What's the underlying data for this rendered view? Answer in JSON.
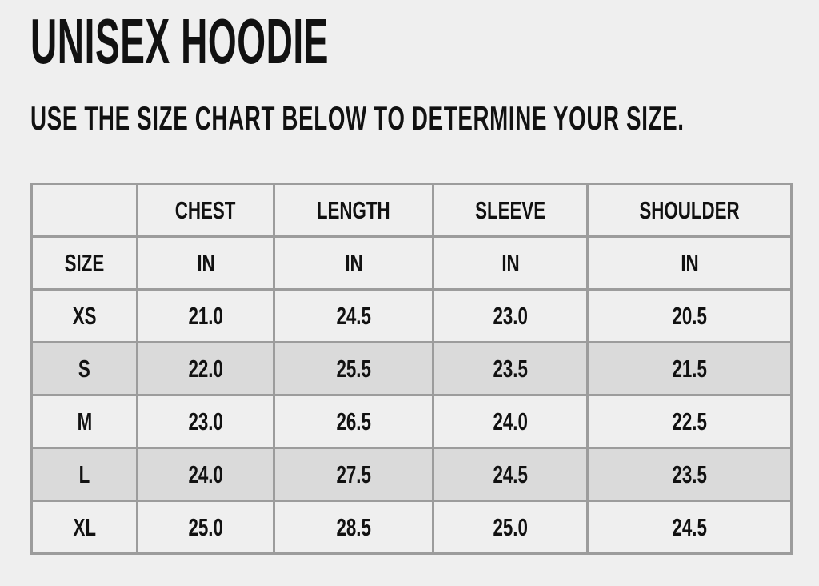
{
  "title": "UNISEX HOODIE",
  "subtitle": "USE THE SIZE CHART BELOW TO DETERMINE YOUR SIZE.",
  "colors": {
    "background": "#efefef",
    "shaded_row": "#dadada",
    "border": "#9c9c9c",
    "text": "#111111"
  },
  "table": {
    "header": [
      "",
      "CHEST",
      "LENGTH",
      "SLEEVE",
      "SHOULDER"
    ],
    "units": [
      "SIZE",
      "IN",
      "IN",
      "IN",
      "IN"
    ],
    "rows": [
      [
        "XS",
        "21.0",
        "24.5",
        "23.0",
        "20.5"
      ],
      [
        "S",
        "22.0",
        "25.5",
        "23.5",
        "21.5"
      ],
      [
        "M",
        "23.0",
        "26.5",
        "24.0",
        "22.5"
      ],
      [
        "L",
        "24.0",
        "27.5",
        "24.5",
        "23.5"
      ],
      [
        "XL",
        "25.0",
        "28.5",
        "25.0",
        "24.5"
      ]
    ],
    "shaded_rows": [
      "S",
      "L"
    ]
  }
}
